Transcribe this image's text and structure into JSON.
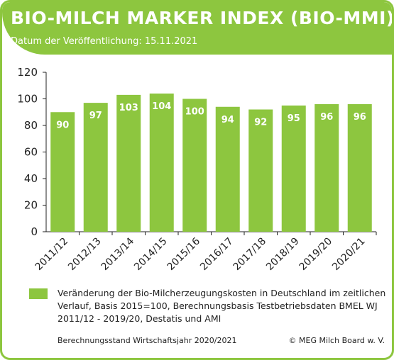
{
  "header": {
    "title": "BIO-MILCH MARKER INDEX (BIO-MMI)",
    "subtitle": "Datum der Veröffentlichung: 15.11.2021"
  },
  "legend": {
    "text": "Veränderung der Bio-Milcherzeugungskosten in Deutschland im zeitlichen Verlauf, Basis 2015=100, Berechnungsbasis Testbetriebsdaten BMEL WJ 2011/12 - 2019/20, Destatis und AMI"
  },
  "footer": {
    "left": "Berechnungsstand Wirtschaftsjahr 2020/2021",
    "right": "© MEG Milch Board w. V."
  },
  "colors": {
    "accent": "#8dc63f",
    "axis": "#222222",
    "label": "#ffffff"
  },
  "chart_data": {
    "type": "bar",
    "categories": [
      "2011/12",
      "2012/13",
      "2013/14",
      "2014/15",
      "2015/16",
      "2016/17",
      "2017/18",
      "2018/19",
      "2019/20",
      "2020/21"
    ],
    "values": [
      90,
      97,
      103,
      104,
      100,
      94,
      92,
      95,
      96,
      96
    ],
    "data_labels": [
      "90",
      "97",
      "103",
      "104",
      "100",
      "94",
      "92",
      "95",
      "96",
      "96"
    ],
    "yticks": [
      0,
      20,
      40,
      60,
      80,
      100,
      120
    ],
    "ylim": [
      0,
      120
    ],
    "grid": false
  }
}
